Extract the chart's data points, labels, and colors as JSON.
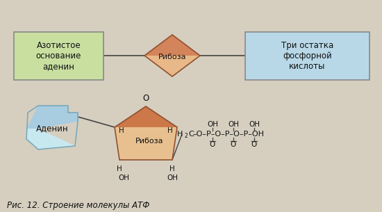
{
  "background_color": "#d6cfc0",
  "fig_caption": "Рис. 12. Строение молекулы АТФ",
  "top_row": {
    "box_left_text": "Азотистое\nоснование\nаденин",
    "box_left_color": "#c8dfa0",
    "box_left_border": "#888888",
    "diamond_text": "Рибоза",
    "diamond_color_top": "#d4845a",
    "diamond_color_bottom": "#e8b888",
    "box_right_text": "Три остатка\nфосфорной\nкислоты",
    "box_right_color": "#b8d8e8",
    "box_right_border": "#888888"
  },
  "bottom_row": {
    "adenine_text": "Аденин",
    "adenine_color_top": "#a8cce0",
    "adenine_color_bottom": "#c8e8f0",
    "adenine_border": "#7aaabb",
    "ribose_text": "Рибоза",
    "ribose_color_top": "#cc7848",
    "ribose_color_bottom": "#e8c090"
  },
  "line_color": "#444444",
  "text_color": "#111111",
  "caption_color": "#111111"
}
